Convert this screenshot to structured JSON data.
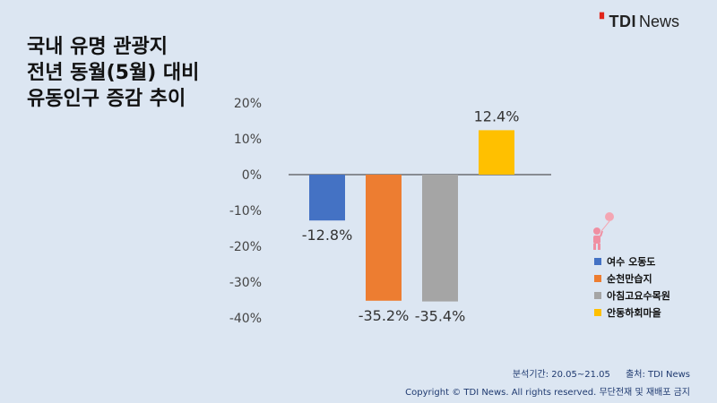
{
  "title_lines": [
    "국내 유명 관광지",
    "전년 동월(5월) 대비",
    "유동인구 증감 추이"
  ],
  "brand": {
    "tdi": "TDI",
    "news": "News"
  },
  "chart_data": {
    "type": "bar",
    "categories": [
      "여수 오동도",
      "순천만습지",
      "아침고요수목원",
      "안동하회마을"
    ],
    "values": [
      -12.8,
      -35.2,
      -35.4,
      12.4
    ],
    "data_labels": [
      "-12.8%",
      "-35.2%",
      "-35.4%",
      "12.4%"
    ],
    "colors": [
      "#4472c4",
      "#ed7d31",
      "#a5a5a5",
      "#ffc000"
    ],
    "ylim": [
      -40,
      20
    ],
    "yticks": [
      20,
      10,
      0,
      -10,
      -20,
      -30,
      -40
    ],
    "ytick_labels": [
      "20%",
      "10%",
      "0%",
      "-10%",
      "-20%",
      "-30%",
      "-40%"
    ],
    "legend_position": "right",
    "grid": false
  },
  "footer": {
    "period": "분석기간: 20.05~21.05",
    "source": "출처: TDI News",
    "copyright": "Copyright © TDI News. All rights reserved. 무단전재 및 재배포 금지"
  }
}
